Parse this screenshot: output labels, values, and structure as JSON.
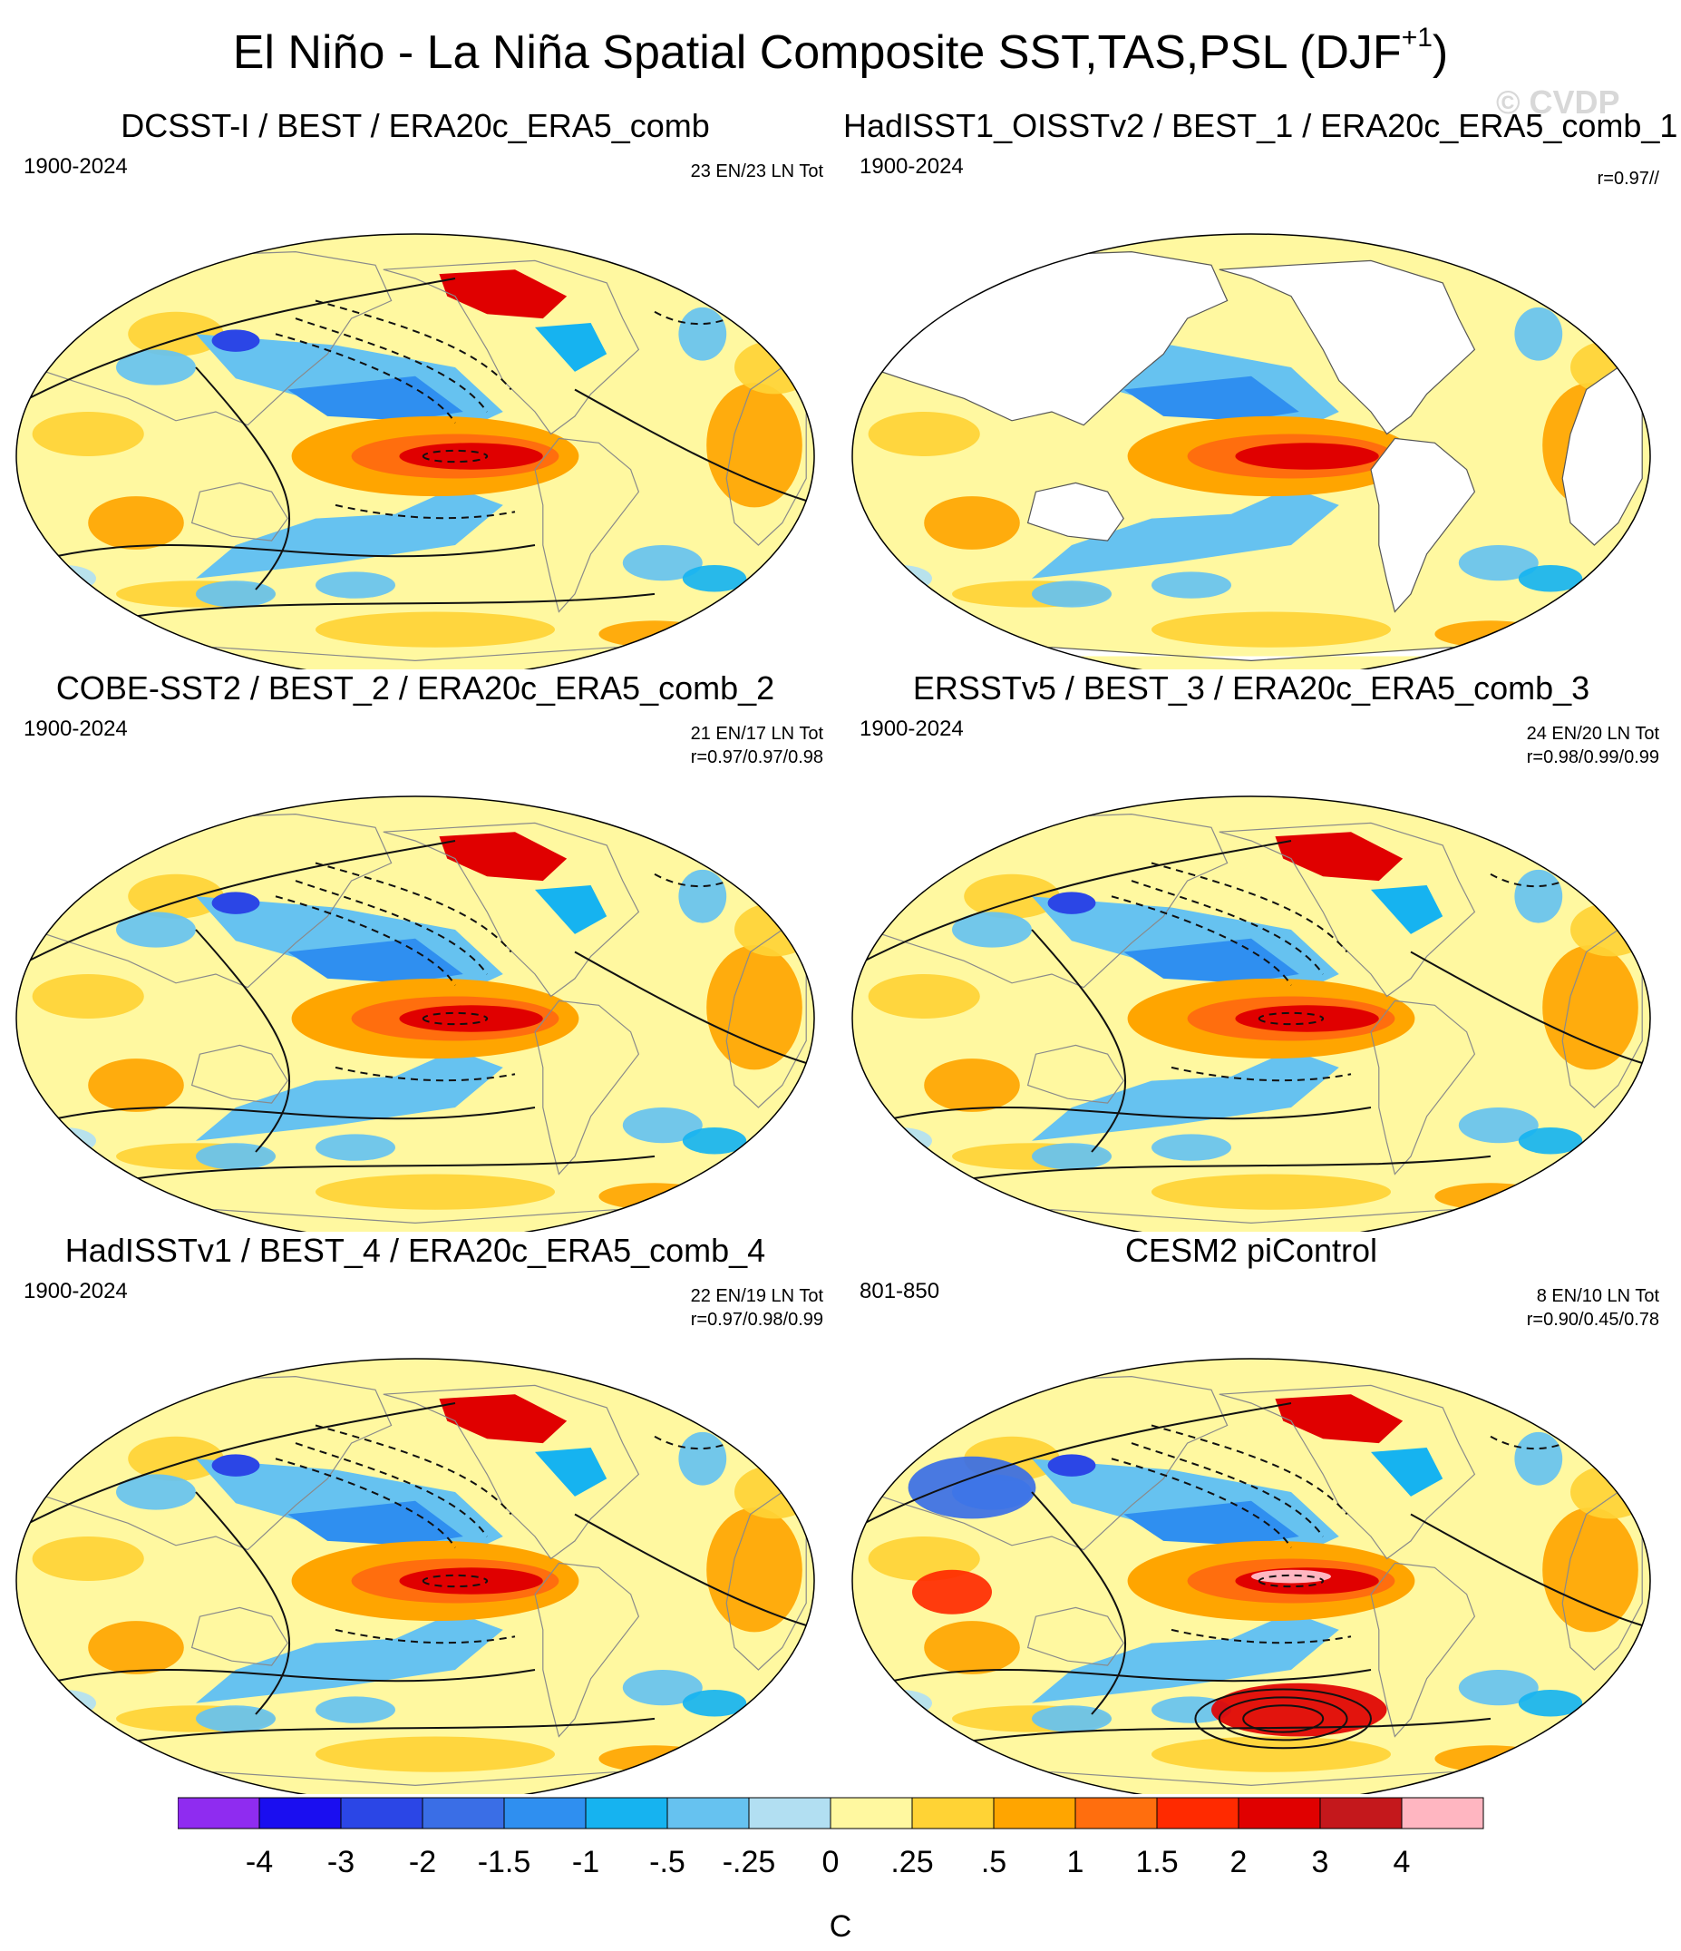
{
  "figure": {
    "title": "El Niño - La Niña Spatial Composite SST,TAS,PSL (DJF",
    "title_sup": "+1",
    "title_close": ")",
    "watermark": "© CVDP"
  },
  "panels": [
    {
      "title": "DCSST-I / BEST / ERA20c_ERA5_comb",
      "period": "1900-2024",
      "counts": "23 EN/23 LN Tot",
      "corr": "",
      "tas_masked": false
    },
    {
      "title": "HadISST1_OISSTv2 / BEST_1 / ERA20c_ERA5_comb_1",
      "period": "1900-2024",
      "counts": "",
      "corr": "r=0.97//",
      "tas_masked": true
    },
    {
      "title": "COBE-SST2 / BEST_2 / ERA20c_ERA5_comb_2",
      "period": "1900-2024",
      "counts": "21 EN/17 LN Tot",
      "corr": "r=0.97/0.97/0.98",
      "tas_masked": false
    },
    {
      "title": "ERSSTv5 / BEST_3 / ERA20c_ERA5_comb_3",
      "period": "1900-2024",
      "counts": "24 EN/20 LN Tot",
      "corr": "r=0.98/0.99/0.99",
      "tas_masked": false
    },
    {
      "title": "HadISSTv1 / BEST_4 / ERA20c_ERA5_comb_4",
      "period": "1900-2024",
      "counts": "22 EN/19 LN Tot",
      "corr": "r=0.97/0.98/0.99",
      "tas_masked": false
    },
    {
      "title": "CESM2 piControl",
      "period": "801-850",
      "counts": "8 EN/10 LN Tot",
      "corr": "r=0.90/0.45/0.78",
      "tas_masked": false
    }
  ],
  "chart_data": {
    "type": "heatmap",
    "title": "El Niño - La Niña Spatial Composite SST,TAS,PSL (DJF+1)",
    "variables": [
      "SST",
      "TAS",
      "PSL"
    ],
    "season": "DJF+1",
    "projection": "Robinson-like global map, Pacific centered",
    "contours": "PSL anomalies: solid positive, dashed negative",
    "colorbar": {
      "unit": "C",
      "tick_labels": [
        "-4",
        "-3",
        "-2",
        "-1.5",
        "-1",
        "-.5",
        "-.25",
        "0",
        ".25",
        ".5",
        "1",
        "1.5",
        "2",
        "3",
        "4"
      ],
      "colors": [
        "#8f2cf0",
        "#1a0ef0",
        "#2b46e6",
        "#3a6ee6",
        "#2f8ff0",
        "#16b3f0",
        "#66c2f0",
        "#b2dff2",
        "#fff8a0",
        "#ffd335",
        "#ffa500",
        "#ff6e0e",
        "#ff2a00",
        "#e00000",
        "#c4181c",
        "#ffb6c1"
      ]
    },
    "panels": [
      {
        "name": "DCSST-I / BEST / ERA20c_ERA5_comb",
        "period": "1900-2024",
        "el_nino_events": 23,
        "la_nina_events": 23
      },
      {
        "name": "HadISST1_OISSTv2 / BEST_1 / ERA20c_ERA5_comb_1",
        "period": "1900-2024",
        "r_sst": 0.97
      },
      {
        "name": "COBE-SST2 / BEST_2 / ERA20c_ERA5_comb_2",
        "period": "1900-2024",
        "el_nino_events": 21,
        "la_nina_events": 17,
        "r": [
          0.97,
          0.97,
          0.98
        ]
      },
      {
        "name": "ERSSTv5 / BEST_3 / ERA20c_ERA5_comb_3",
        "period": "1900-2024",
        "el_nino_events": 24,
        "la_nina_events": 20,
        "r": [
          0.98,
          0.99,
          0.99
        ]
      },
      {
        "name": "HadISSTv1 / BEST_4 / ERA20c_ERA5_comb_4",
        "period": "1900-2024",
        "el_nino_events": 22,
        "la_nina_events": 19,
        "r": [
          0.97,
          0.98,
          0.99
        ]
      },
      {
        "name": "CESM2 piControl",
        "period": "801-850",
        "el_nino_events": 8,
        "la_nina_events": 10,
        "r": [
          0.9,
          0.45,
          0.78
        ]
      }
    ]
  }
}
